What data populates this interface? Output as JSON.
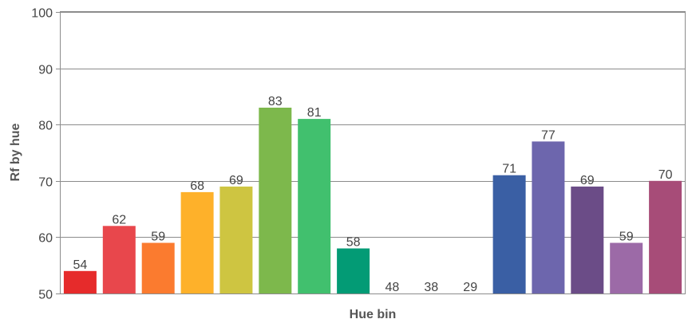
{
  "chart_data": {
    "type": "bar",
    "title": "",
    "xlabel": "Hue bin",
    "ylabel": "Rf  by hue",
    "ylim": [
      50,
      100
    ],
    "yticks": [
      50,
      60,
      70,
      80,
      90,
      100
    ],
    "grid": true,
    "legend": "none",
    "values": [
      54,
      62,
      59,
      68,
      69,
      83,
      81,
      58,
      48,
      38,
      29,
      71,
      77,
      69,
      59,
      70
    ],
    "data_labels": [
      "54",
      "62",
      "59",
      "68",
      "69",
      "83",
      "81",
      "58",
      "48",
      "38",
      "29",
      "71",
      "77",
      "69",
      "59",
      "70"
    ],
    "colors": [
      "#e62b2b",
      "#e8474c",
      "#fb7b2f",
      "#feb12a",
      "#cec541",
      "#7db84c",
      "#41c06e",
      "#039b75",
      "#178ac4",
      "#2e78c0",
      "#2050a0",
      "#3a5fa4",
      "#6d66ad",
      "#6b4c87",
      "#9c6aa7",
      "#a74c78"
    ]
  }
}
